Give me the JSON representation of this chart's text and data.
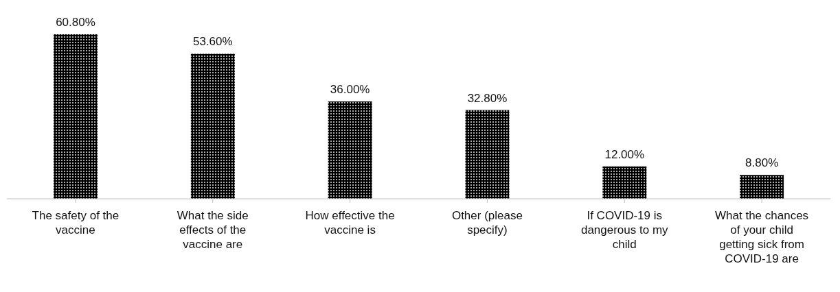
{
  "chart_data": {
    "type": "bar",
    "categories": [
      "The safety of the vaccine",
      "What the side effects of the vaccine are",
      "How effective the vaccine is",
      "Other (please specify)",
      "If COVID-19 is dangerous to my child",
      "What the chances of your child getting sick from COVID-19 are"
    ],
    "values": [
      60.8,
      53.6,
      36.0,
      32.8,
      12.0,
      8.8
    ],
    "value_labels": [
      "60.80%",
      "53.60%",
      "36.00%",
      "32.80%",
      "12.00%",
      "8.80%"
    ],
    "color": "#000000",
    "grid": false,
    "legend": false
  }
}
